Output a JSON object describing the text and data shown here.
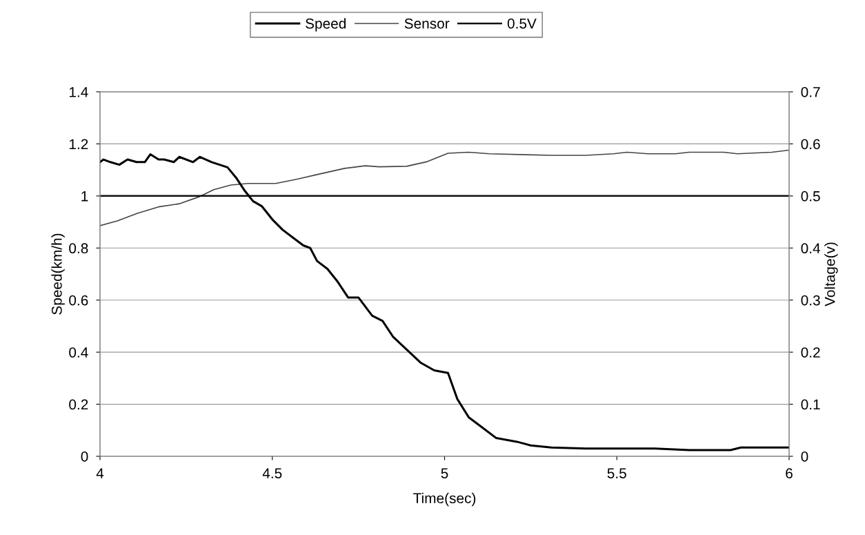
{
  "chart_data": {
    "type": "line",
    "xlabel": "Time(sec)",
    "ylabel": "Speed(km/h)",
    "y2label": "Voltage(v)",
    "xlim": [
      4,
      6
    ],
    "xticks": [
      4,
      4.5,
      5,
      5.5,
      6
    ],
    "ylim": [
      0,
      1.4
    ],
    "yticks": [
      0,
      0.2,
      0.4,
      0.6,
      0.8,
      1,
      1.2,
      1.4
    ],
    "y2lim": [
      0,
      0.7
    ],
    "y2ticks": [
      0,
      0.1,
      0.2,
      0.3,
      0.4,
      0.5,
      0.6,
      0.7
    ],
    "grid": "y",
    "legend": "top",
    "marker": "none",
    "line_style": "solid",
    "series": [
      {
        "name": "Speed",
        "color": "#000000",
        "x": [
          4.0,
          4.01,
          4.03,
          4.056,
          4.08,
          4.106,
          4.13,
          4.146,
          4.17,
          4.186,
          4.214,
          4.23,
          4.27,
          4.29,
          4.324,
          4.37,
          4.395,
          4.42,
          4.444,
          4.47,
          4.5,
          4.53,
          4.56,
          4.59,
          4.61,
          4.63,
          4.66,
          4.69,
          4.72,
          4.75,
          4.79,
          4.82,
          4.85,
          4.89,
          4.93,
          4.97,
          5.01,
          5.037,
          5.07,
          5.11,
          5.15,
          5.21,
          5.25,
          5.31,
          5.41,
          5.51,
          5.61,
          5.71,
          5.77,
          5.83,
          5.86,
          6.0
        ],
        "values": [
          1.13,
          1.14,
          1.13,
          1.12,
          1.14,
          1.13,
          1.13,
          1.16,
          1.14,
          1.14,
          1.13,
          1.15,
          1.13,
          1.15,
          1.13,
          1.11,
          1.07,
          1.02,
          0.98,
          0.96,
          0.91,
          0.87,
          0.84,
          0.81,
          0.8,
          0.75,
          0.72,
          0.67,
          0.61,
          0.61,
          0.54,
          0.52,
          0.46,
          0.41,
          0.36,
          0.33,
          0.32,
          0.22,
          0.15,
          0.11,
          0.07,
          0.056,
          0.042,
          0.034,
          0.03,
          0.03,
          0.03,
          0.024,
          0.024,
          0.024,
          0.034,
          0.034
        ]
      },
      {
        "name": "Sensor",
        "color": "#444444",
        "axis": "y2",
        "x": [
          4.0,
          4.05,
          4.11,
          4.17,
          4.23,
          4.29,
          4.33,
          4.38,
          4.43,
          4.51,
          4.57,
          4.63,
          4.71,
          4.77,
          4.81,
          4.89,
          4.95,
          5.01,
          5.07,
          5.13,
          5.31,
          5.41,
          5.49,
          5.53,
          5.59,
          5.67,
          5.71,
          5.81,
          5.85,
          5.95,
          6.0
        ],
        "values": [
          0.443,
          0.452,
          0.467,
          0.479,
          0.485,
          0.499,
          0.512,
          0.521,
          0.524,
          0.524,
          0.532,
          0.541,
          0.553,
          0.558,
          0.556,
          0.557,
          0.566,
          0.582,
          0.584,
          0.581,
          0.578,
          0.578,
          0.581,
          0.584,
          0.581,
          0.581,
          0.584,
          0.584,
          0.581,
          0.584,
          0.588
        ]
      },
      {
        "name": "0.5V",
        "color": "#111111",
        "axis": "y2",
        "x": [
          4,
          6
        ],
        "values": [
          0.5,
          0.5
        ]
      }
    ]
  }
}
